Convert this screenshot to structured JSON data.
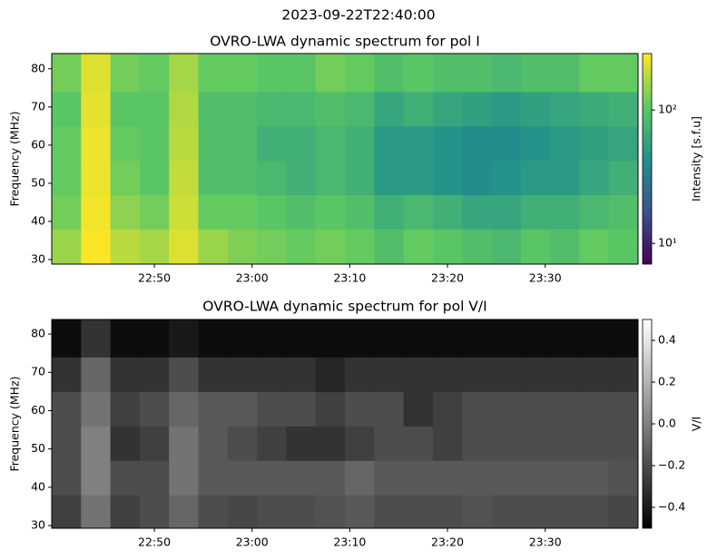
{
  "title": "2023-09-22T22:40:00",
  "chart_data": [
    {
      "type": "heatmap",
      "title": "OVRO-LWA dynamic spectrum for pol I",
      "ylabel": "Frequency (MHz)",
      "x_edges": [
        -0.5,
        2.5,
        5.5,
        8.5,
        11.5,
        14.5,
        17.5,
        20.5,
        23.5,
        26.5,
        29.5,
        32.5,
        35.5,
        38.5,
        41.5,
        44.5,
        47.5,
        50.5,
        53.5,
        56.5,
        59.5
      ],
      "y_edges": [
        28.8,
        38,
        47,
        56,
        65,
        74,
        84
      ],
      "z": [
        [
          150,
          260,
          180,
          160,
          220,
          150,
          130,
          120,
          110,
          120,
          110,
          90,
          110,
          100,
          90,
          80,
          100,
          90,
          110,
          100
        ],
        [
          120,
          250,
          140,
          120,
          200,
          110,
          110,
          100,
          90,
          100,
          90,
          70,
          80,
          70,
          60,
          60,
          70,
          70,
          80,
          90
        ],
        [
          110,
          240,
          120,
          100,
          190,
          90,
          90,
          80,
          70,
          80,
          70,
          50,
          50,
          45,
          40,
          45,
          50,
          50,
          60,
          70
        ],
        [
          110,
          240,
          110,
          100,
          180,
          90,
          90,
          70,
          70,
          80,
          70,
          50,
          50,
          45,
          40,
          40,
          45,
          50,
          55,
          60
        ],
        [
          100,
          230,
          100,
          100,
          170,
          90,
          90,
          80,
          80,
          90,
          80,
          60,
          70,
          60,
          55,
          50,
          55,
          60,
          65,
          70
        ],
        [
          120,
          220,
          120,
          110,
          160,
          110,
          110,
          100,
          100,
          120,
          110,
          90,
          100,
          90,
          90,
          80,
          90,
          90,
          110,
          110
        ]
      ],
      "xlim": [
        -0.5,
        59.5
      ],
      "ylim": [
        28.8,
        84
      ],
      "xticks": [
        {
          "value": 10,
          "label": "22:50"
        },
        {
          "value": 20,
          "label": "23:00"
        },
        {
          "value": 30,
          "label": "23:10"
        },
        {
          "value": 40,
          "label": "23:20"
        },
        {
          "value": 50,
          "label": "23:30"
        }
      ],
      "yticks": [
        30,
        40,
        50,
        60,
        70,
        80
      ],
      "colormap": "viridis",
      "colorbar": {
        "label": "Intensity [s.f.u]",
        "clim": [
          7,
          265
        ],
        "scale": "log",
        "ticks": [
          {
            "value": 10,
            "label": "10¹"
          },
          {
            "value": 100,
            "label": "10²"
          }
        ]
      }
    },
    {
      "type": "heatmap",
      "title": "OVRO-LWA dynamic spectrum for pol V/I",
      "ylabel": "Frequency (MHz)",
      "x_edges": [
        -0.5,
        2.5,
        5.5,
        8.5,
        11.5,
        14.5,
        17.5,
        20.5,
        23.5,
        26.5,
        29.5,
        32.5,
        35.5,
        38.5,
        41.5,
        44.5,
        47.5,
        50.5,
        53.5,
        56.5,
        59.5
      ],
      "y_edges": [
        29.3,
        38,
        47,
        56,
        65,
        74,
        83.8
      ],
      "z": [
        [
          -0.25,
          -0.05,
          -0.25,
          -0.2,
          -0.1,
          -0.2,
          -0.22,
          -0.2,
          -0.2,
          -0.18,
          -0.15,
          -0.2,
          -0.2,
          -0.2,
          -0.18,
          -0.2,
          -0.2,
          -0.2,
          -0.2,
          -0.22
        ],
        [
          -0.2,
          0.0,
          -0.2,
          -0.2,
          -0.05,
          -0.15,
          -0.15,
          -0.15,
          -0.15,
          -0.15,
          -0.1,
          -0.15,
          -0.15,
          -0.15,
          -0.15,
          -0.15,
          -0.15,
          -0.15,
          -0.15,
          -0.18
        ],
        [
          -0.2,
          0.0,
          -0.3,
          -0.25,
          -0.05,
          -0.15,
          -0.2,
          -0.25,
          -0.3,
          -0.3,
          -0.25,
          -0.2,
          -0.2,
          -0.25,
          -0.2,
          -0.2,
          -0.2,
          -0.2,
          -0.2,
          -0.2
        ],
        [
          -0.2,
          -0.05,
          -0.25,
          -0.2,
          -0.1,
          -0.15,
          -0.15,
          -0.2,
          -0.2,
          -0.25,
          -0.2,
          -0.2,
          -0.3,
          -0.25,
          -0.2,
          -0.2,
          -0.2,
          -0.2,
          -0.2,
          -0.2
        ],
        [
          -0.3,
          -0.1,
          -0.3,
          -0.3,
          -0.2,
          -0.3,
          -0.3,
          -0.3,
          -0.3,
          -0.35,
          -0.3,
          -0.3,
          -0.3,
          -0.3,
          -0.3,
          -0.3,
          -0.3,
          -0.3,
          -0.3,
          -0.3
        ],
        [
          -0.45,
          -0.3,
          -0.45,
          -0.45,
          -0.4,
          -0.45,
          -0.45,
          -0.45,
          -0.45,
          -0.45,
          -0.45,
          -0.45,
          -0.45,
          -0.45,
          -0.45,
          -0.45,
          -0.45,
          -0.45,
          -0.45,
          -0.45
        ]
      ],
      "xlim": [
        -0.5,
        59.5
      ],
      "ylim": [
        29.3,
        83.8
      ],
      "xticks": [
        {
          "value": 10,
          "label": "22:50"
        },
        {
          "value": 20,
          "label": "23:00"
        },
        {
          "value": 30,
          "label": "23:10"
        },
        {
          "value": 40,
          "label": "23:20"
        },
        {
          "value": 50,
          "label": "23:30"
        }
      ],
      "yticks": [
        30,
        40,
        50,
        60,
        70,
        80
      ],
      "colormap": "gray",
      "colorbar": {
        "label": "V/I",
        "clim": [
          -0.5,
          0.5
        ],
        "scale": "linear",
        "ticks": [
          {
            "value": -0.4,
            "label": "−0.4"
          },
          {
            "value": -0.2,
            "label": "−0.2"
          },
          {
            "value": 0,
            "label": "0.0"
          },
          0.2,
          0.4
        ]
      }
    }
  ]
}
